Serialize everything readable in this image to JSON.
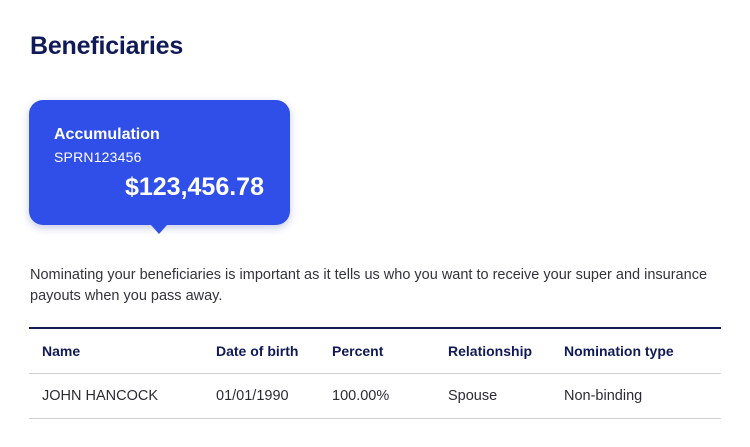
{
  "page": {
    "title": "Beneficiaries"
  },
  "account_card": {
    "name": "Accumulation",
    "number": "SPRN123456",
    "balance": "$123,456.78",
    "color": "#2f4fe8"
  },
  "intro_text": "Nominating your beneficiaries is important as it tells us who you want to receive your super and insurance payouts when you pass away.",
  "table": {
    "headers": [
      "Name",
      "Date of birth",
      "Percent",
      "Relationship",
      "Nomination type"
    ],
    "rows": [
      [
        "JOHN HANCOCK",
        "01/01/1990",
        "100.00%",
        "Spouse",
        "Non-binding"
      ]
    ]
  },
  "colors": {
    "heading": "#101a57",
    "accent": "#2f4fe8",
    "divider": "#cfcfd4"
  }
}
